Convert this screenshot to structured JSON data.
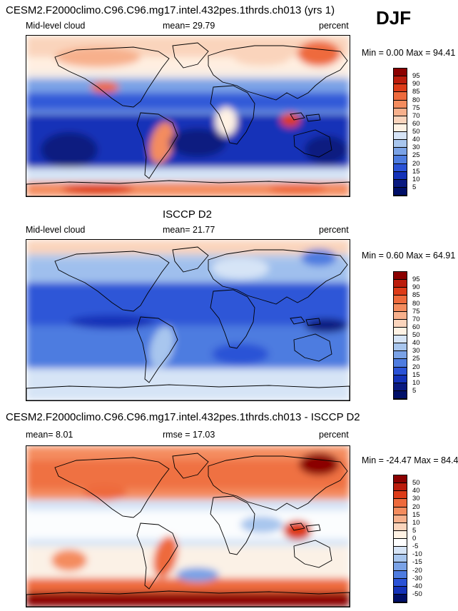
{
  "season": "DJF",
  "chart_data": [
    {
      "type": "heatmap",
      "title": "CESM2.F2000climo.C96.C96.mg17.intel.432pes.1thrds.ch013 (yrs 1)",
      "left_label": "Mid-level cloud",
      "mean_text": "mean=  29.79",
      "units": "percent",
      "minmax_text": "Min =   0.00 Max =  94.41",
      "min": 0.0,
      "max": 94.41,
      "mean": 29.79,
      "scheme": "abs",
      "colorbar_levels": [
        "95",
        "90",
        "85",
        "80",
        "75",
        "70",
        "60",
        "50",
        "40",
        "30",
        "25",
        "20",
        "15",
        "10",
        "5"
      ]
    },
    {
      "type": "heatmap",
      "title": "ISCCP D2",
      "left_label": "Mid-level cloud",
      "mean_text": "mean=  21.77",
      "units": "percent",
      "minmax_text": "Min =   0.60 Max =  64.91",
      "min": 0.6,
      "max": 64.91,
      "mean": 21.77,
      "scheme": "abs",
      "colorbar_levels": [
        "95",
        "90",
        "85",
        "80",
        "75",
        "70",
        "60",
        "50",
        "40",
        "30",
        "25",
        "20",
        "15",
        "10",
        "5"
      ]
    },
    {
      "type": "heatmap",
      "title": "CESM2.F2000climo.C96.C96.mg17.intel.432pes.1thrds.ch013 - ISCCP D2",
      "left_label": "mean=   8.01",
      "mean_text": "rmse =  17.03",
      "units": "percent",
      "minmax_text": "Min = -24.47 Max =  84.44",
      "min": -24.47,
      "max": 84.44,
      "mean": 8.01,
      "rmse": 17.03,
      "scheme": "diff",
      "colorbar_levels": [
        "50",
        "40",
        "30",
        "20",
        "15",
        "10",
        "5",
        "0",
        "-5",
        "-10",
        "-15",
        "-20",
        "-30",
        "-40",
        "-50"
      ]
    }
  ],
  "colors": {
    "abs": [
      "#8b0000",
      "#bb1c0c",
      "#dd3b18",
      "#ee6a3c",
      "#f48c5e",
      "#f7b08c",
      "#fad4bc",
      "#fff2e4",
      "#d6e4f6",
      "#a8c6ee",
      "#7aa2e6",
      "#4e7ce0",
      "#2a52d6",
      "#1432b8",
      "#0a1a80",
      "#000f68"
    ],
    "diff": [
      "#8b0000",
      "#bb1c0c",
      "#dd3b18",
      "#ee6a3c",
      "#f48c5e",
      "#f7b08c",
      "#fad4bc",
      "#fff2e4",
      "#ffffff",
      "#d6e4f6",
      "#a8c6ee",
      "#7aa2e6",
      "#4e7ce0",
      "#2a52d6",
      "#1432b8",
      "#000f68"
    ]
  }
}
